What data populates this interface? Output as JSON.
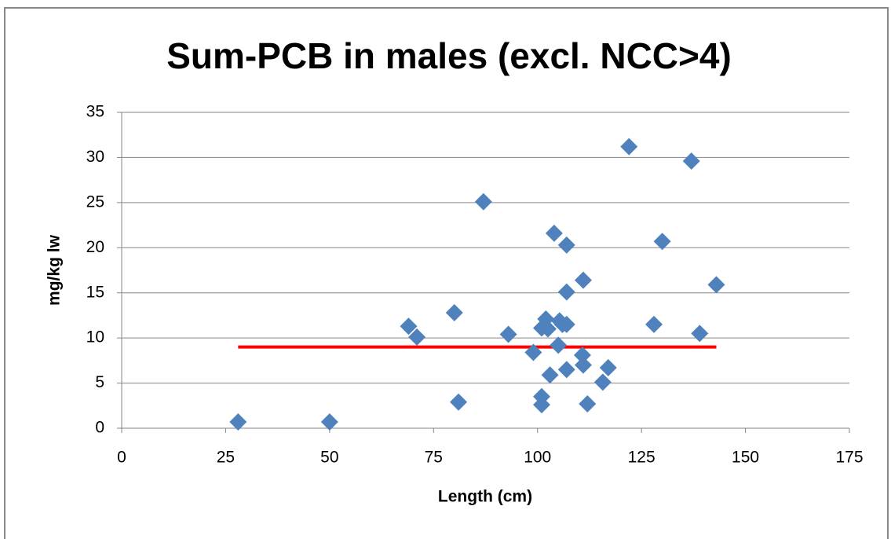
{
  "chart_data": {
    "type": "scatter",
    "title": "Sum-PCB in males (excl. NCC>4)",
    "x_label": "Length (cm)",
    "y_label": "mg/kg lw",
    "x": [
      28,
      50,
      69,
      71,
      80,
      81,
      87,
      93,
      99,
      101,
      101,
      101,
      102,
      102.5,
      103,
      104,
      105.3,
      105,
      106,
      107,
      107,
      107,
      107,
      110.8,
      111,
      111,
      112,
      115.7,
      117,
      122,
      128,
      130,
      137,
      139,
      143
    ],
    "values": [
      0.7,
      0.7,
      11.3,
      10.1,
      12.8,
      2.9,
      25.1,
      10.4,
      8.4,
      3.5,
      2.6,
      11.1,
      12.1,
      11,
      5.9,
      21.6,
      11.9,
      9.2,
      11.5,
      11.5,
      6.5,
      15.1,
      20.3,
      8.1,
      7,
      16.4,
      2.7,
      5.1,
      6.7,
      31.2,
      11.5,
      20.7,
      29.6,
      10.5,
      15.9
    ],
    "color": "#4f81bd",
    "reference_line": {
      "x": [
        28,
        143
      ],
      "values": [
        9,
        9
      ],
      "color": "#ff0000"
    },
    "xlim": [
      0,
      175
    ],
    "xticks": [
      0,
      25,
      50,
      75,
      100,
      125,
      150,
      175
    ],
    "ylim": [
      0,
      35
    ],
    "yticks": [
      0,
      5,
      10,
      15,
      20,
      25,
      30,
      35
    ],
    "grid": true
  }
}
